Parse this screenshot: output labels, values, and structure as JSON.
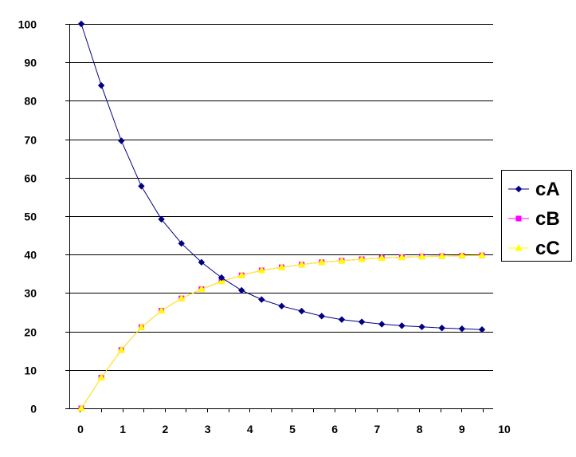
{
  "chart_data": {
    "type": "line",
    "title": "",
    "xlabel": "",
    "ylabel": "",
    "xlim": [
      0,
      10
    ],
    "ylim": [
      0,
      100
    ],
    "x_ticks": [
      0,
      1,
      2,
      3,
      4,
      5,
      6,
      7,
      8,
      9,
      10
    ],
    "y_ticks": [
      0,
      10,
      20,
      30,
      40,
      50,
      60,
      70,
      80,
      90,
      100
    ],
    "grid": "horizontal",
    "legend_position": "right",
    "x": [
      0,
      0.5,
      1,
      1.5,
      2,
      2.5,
      3,
      3.5,
      4,
      4.5,
      5,
      5.5,
      6,
      6.5,
      7,
      7.5,
      8,
      8.5,
      9,
      9.5,
      10
    ],
    "series": [
      {
        "name": "cA",
        "color": "#000080",
        "marker": "diamond",
        "values": [
          100,
          84.0,
          69.6,
          57.8,
          49.2,
          42.9,
          38.0,
          34.0,
          30.7,
          28.3,
          26.6,
          25.3,
          24.0,
          23.1,
          22.5,
          21.9,
          21.5,
          21.2,
          20.9,
          20.7,
          20.5
        ]
      },
      {
        "name": "cB",
        "color": "#FF00FF",
        "marker": "square",
        "values": [
          0,
          8.0,
          15.2,
          21.1,
          25.4,
          28.6,
          31.0,
          33.0,
          34.6,
          35.9,
          36.7,
          37.4,
          38.0,
          38.4,
          38.8,
          39.1,
          39.3,
          39.5,
          39.6,
          39.7,
          39.8
        ]
      },
      {
        "name": "cC",
        "color": "#FFFF00",
        "marker": "triangle",
        "values": [
          0,
          8.0,
          15.2,
          21.1,
          25.4,
          28.6,
          31.0,
          33.0,
          34.6,
          35.9,
          36.7,
          37.4,
          38.0,
          38.4,
          38.8,
          39.1,
          39.3,
          39.5,
          39.6,
          39.7,
          39.8
        ]
      }
    ]
  }
}
